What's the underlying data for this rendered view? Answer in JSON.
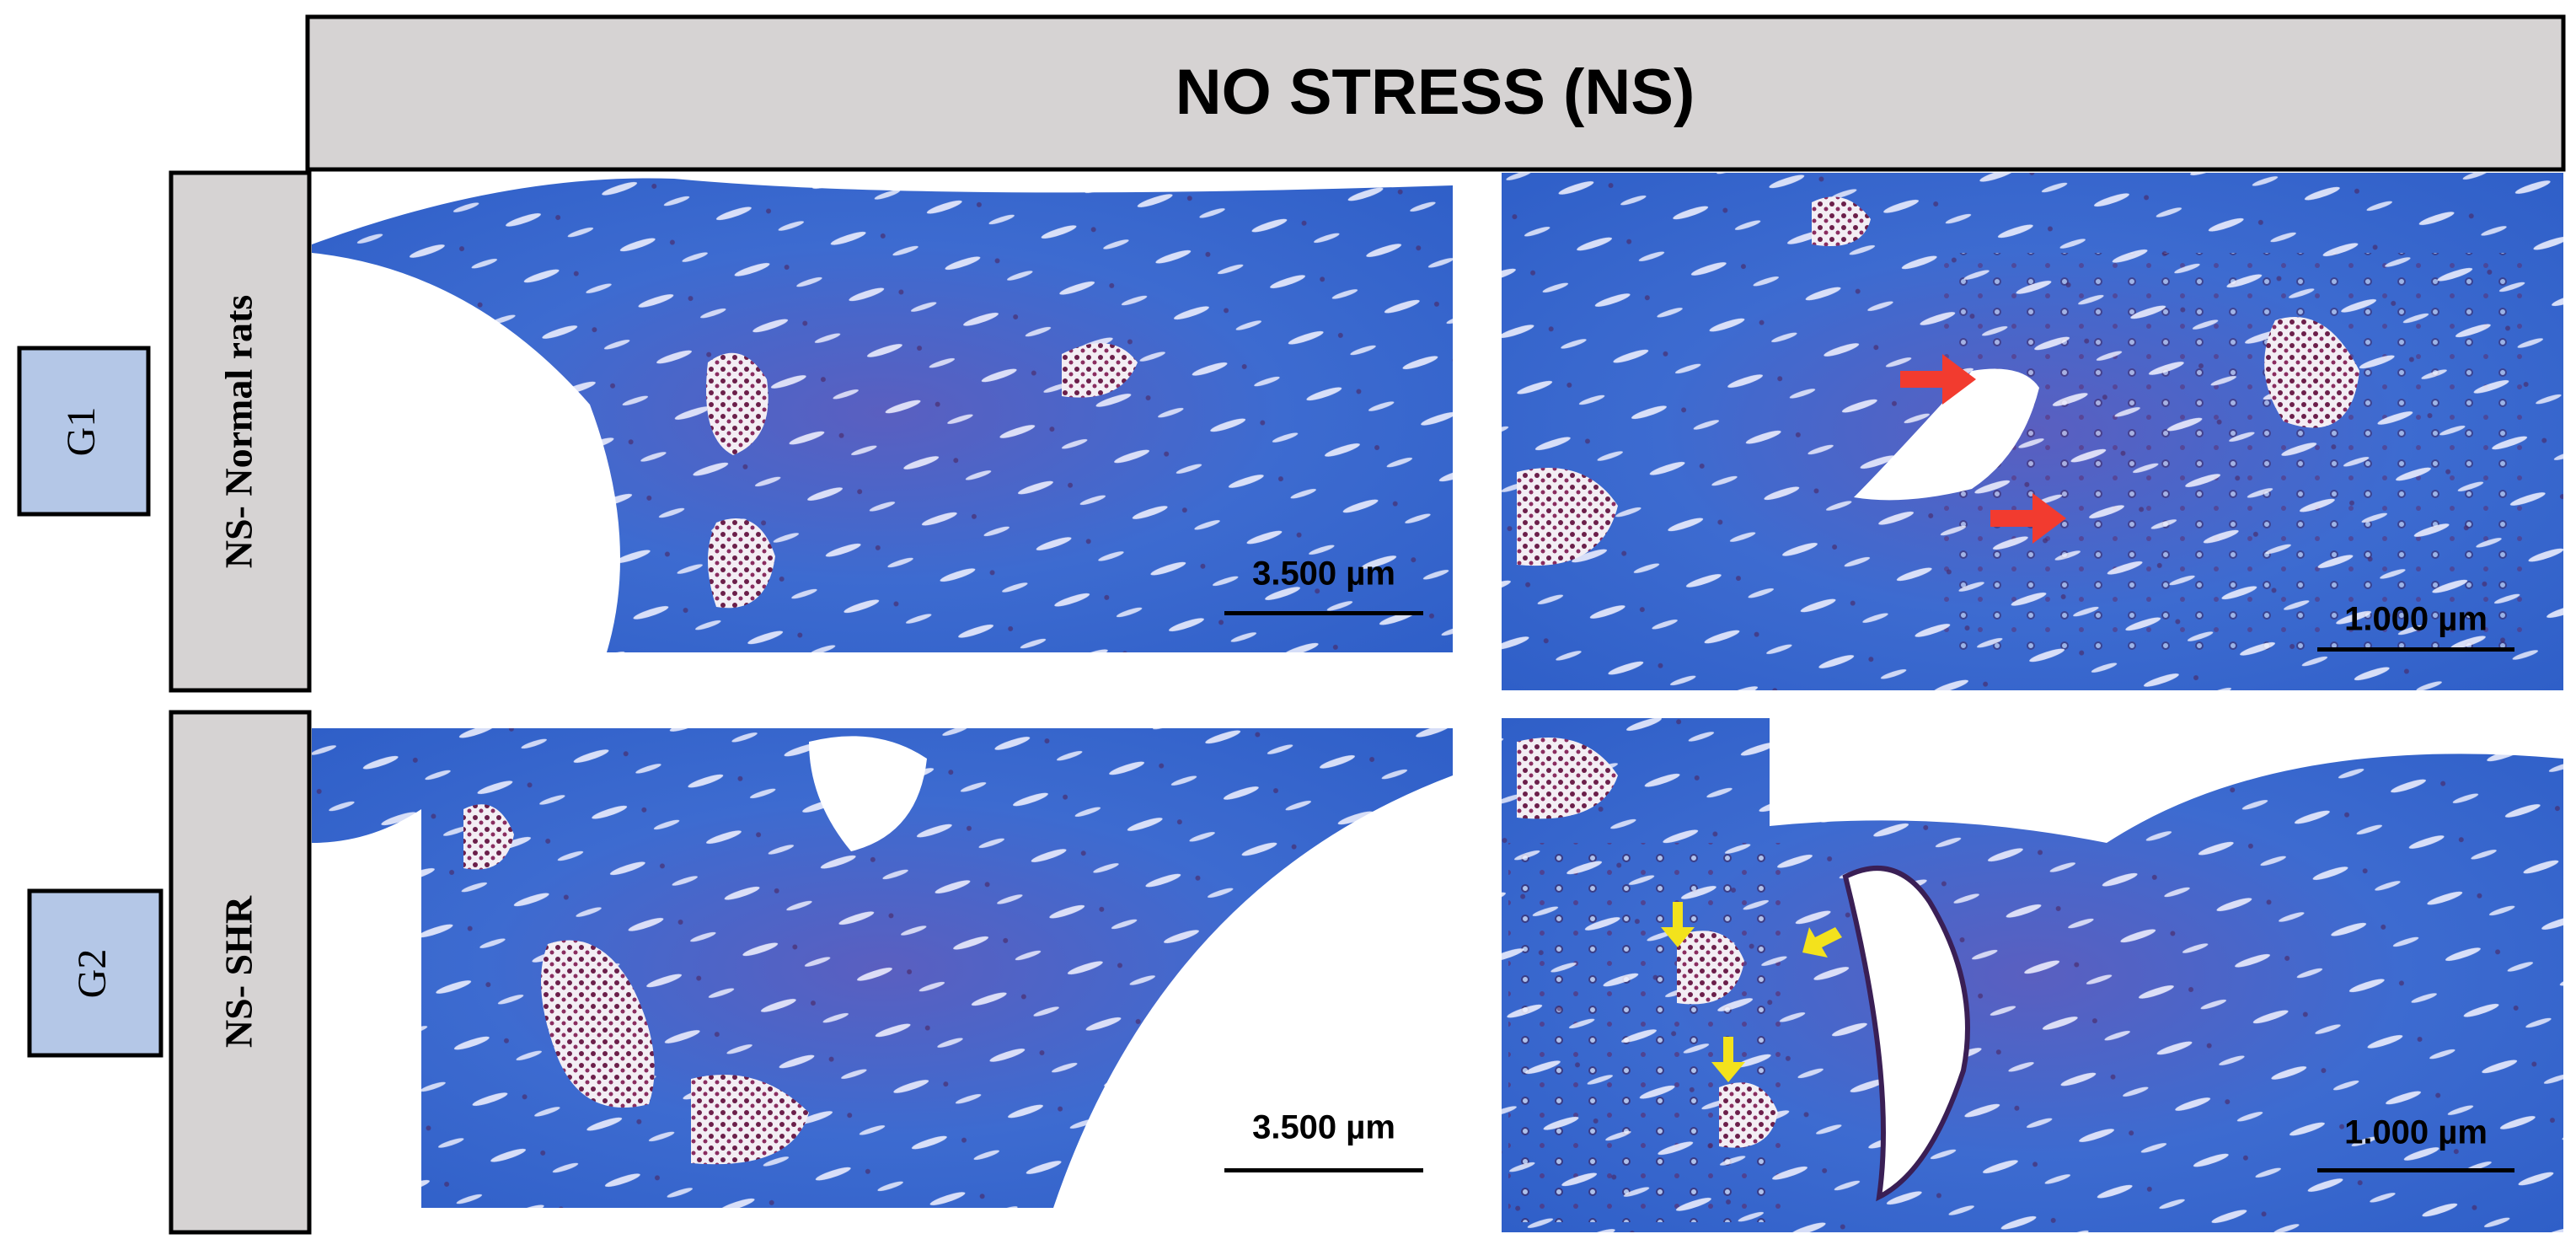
{
  "header": {
    "title": "NO STRESS (NS)"
  },
  "rows": [
    {
      "group": "G1",
      "label": "NS- Normal rats",
      "panels": [
        {
          "scale": "3.500 µm"
        },
        {
          "scale": "1.000 µm"
        }
      ]
    },
    {
      "group": "G2",
      "label": "NS- SHR",
      "panels": [
        {
          "scale": "3.500 µm"
        },
        {
          "scale": "1.000 µm"
        }
      ]
    }
  ]
}
